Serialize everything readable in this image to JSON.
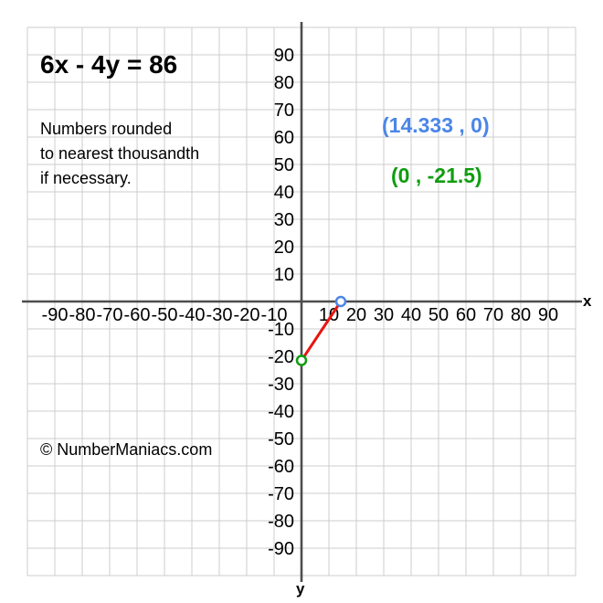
{
  "chart_data": {
    "type": "line",
    "title": "6x - 4y = 86",
    "subtitle_lines": [
      "Numbers rounded",
      "to nearest thousandth",
      "if necessary."
    ],
    "watermark": "© NumberManiacs.com",
    "xlabel": "x",
    "ylabel": "y",
    "xlim": [
      -100,
      100
    ],
    "ylim": [
      -100,
      100
    ],
    "grid": true,
    "grid_step": 10,
    "x_ticks": [
      -90,
      -80,
      -70,
      -60,
      -50,
      -40,
      -30,
      -20,
      -10,
      10,
      20,
      30,
      40,
      50,
      60,
      70,
      80,
      90
    ],
    "y_ticks": [
      90,
      80,
      70,
      60,
      50,
      40,
      30,
      20,
      10,
      -10,
      -20,
      -30,
      -40,
      -50,
      -60,
      -70,
      -80,
      -90
    ],
    "series": [
      {
        "name": "intercept-segment",
        "x": [
          0,
          14.333
        ],
        "y": [
          -21.5,
          0
        ],
        "color": "#e8150f"
      }
    ],
    "points": [
      {
        "name": "x-intercept",
        "x": 14.333,
        "y": 0,
        "label": "(14.333 , 0)",
        "color": "#4a86e8"
      },
      {
        "name": "y-intercept",
        "x": 0,
        "y": -21.5,
        "label": "(0 , -21.5)",
        "color": "#0f9d0f"
      }
    ],
    "colors": {
      "grid": "#cccccc",
      "axis": "#4d4d4d",
      "tick_text": "#000000",
      "point_fill": "#ffffff"
    }
  }
}
